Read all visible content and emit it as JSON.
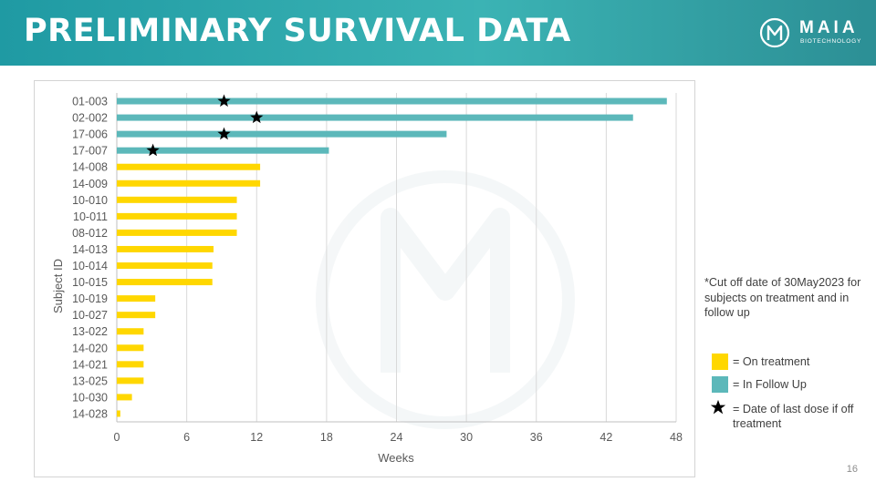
{
  "slide": {
    "title": "PRELIMINARY SURVIVAL DATA",
    "logo_name": "MAIA",
    "logo_sub": "BIOTECHNOLOGY",
    "page_number": "16",
    "footnote": "*Cut off date of 30May2023 for subjects on treatment and in follow up"
  },
  "legend": {
    "on_treatment": "= On treatment",
    "in_follow_up": "= In Follow Up",
    "last_dose": "= Date of last dose if off treatment"
  },
  "colors": {
    "on_treatment": "#FFD700",
    "in_follow_up": "#5CB8BA",
    "star": "#000000",
    "header": "#2aa3aa"
  },
  "chart_data": {
    "type": "bar",
    "orientation": "horizontal",
    "categories": [
      "01-003",
      "02-002",
      "17-006",
      "17-007",
      "14-008",
      "14-009",
      "10-010",
      "10-011",
      "08-012",
      "14-013",
      "10-014",
      "10-015",
      "10-019",
      "10-027",
      "13-022",
      "14-020",
      "14-021",
      "13-025",
      "10-030",
      "14-028"
    ],
    "values": [
      47.2,
      44.3,
      28.3,
      18.2,
      12.3,
      12.3,
      10.3,
      10.3,
      10.3,
      8.3,
      8.2,
      8.2,
      3.3,
      3.3,
      2.3,
      2.3,
      2.3,
      2.3,
      1.3,
      0.3
    ],
    "status": [
      "follow_up",
      "follow_up",
      "follow_up",
      "follow_up",
      "on_treatment",
      "on_treatment",
      "on_treatment",
      "on_treatment",
      "on_treatment",
      "on_treatment",
      "on_treatment",
      "on_treatment",
      "on_treatment",
      "on_treatment",
      "on_treatment",
      "on_treatment",
      "on_treatment",
      "on_treatment",
      "on_treatment",
      "on_treatment"
    ],
    "last_dose_weeks": [
      9.2,
      12.0,
      9.2,
      3.1,
      null,
      null,
      null,
      null,
      null,
      null,
      null,
      null,
      null,
      null,
      null,
      null,
      null,
      null,
      null,
      null
    ],
    "xlabel": "Weeks",
    "ylabel": "Subject ID",
    "xlim": [
      0,
      48
    ],
    "xticks": [
      0,
      6,
      12,
      18,
      24,
      30,
      36,
      42,
      48
    ],
    "grid": true
  }
}
